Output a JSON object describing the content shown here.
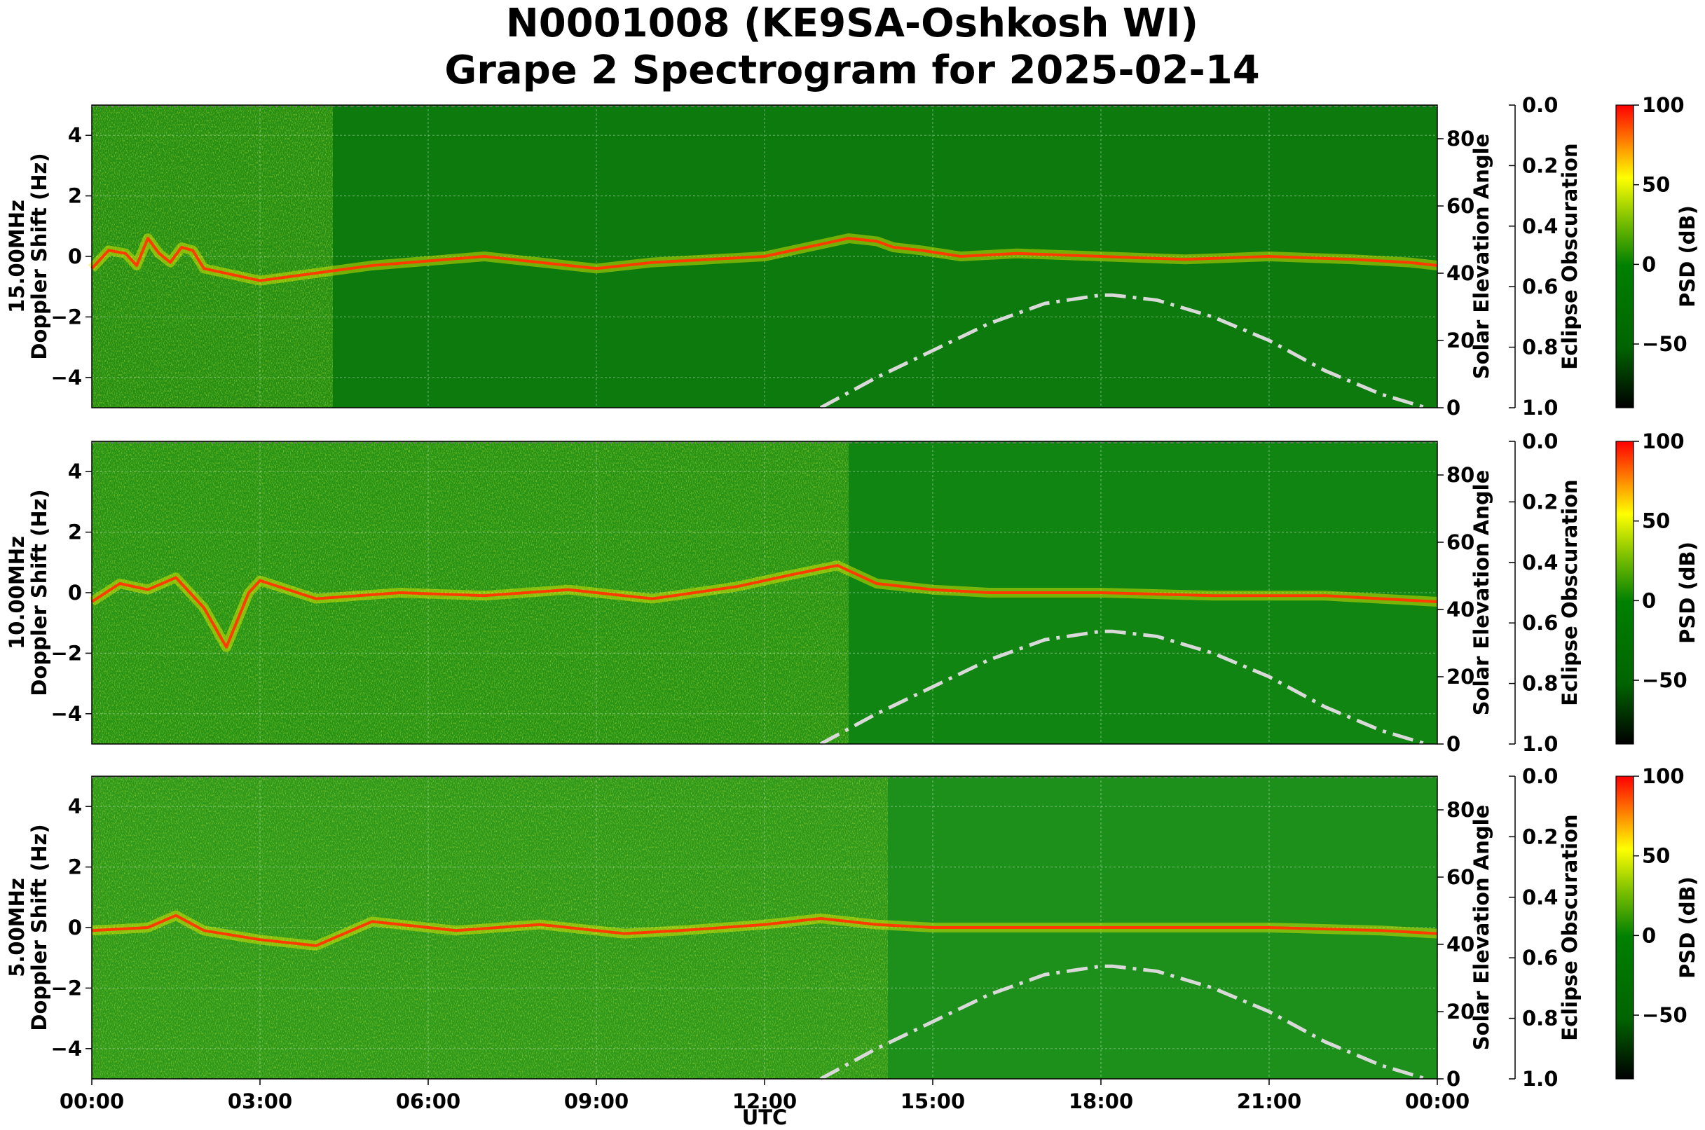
{
  "title_line1": "N0001008 (KE9SA-Oshkosh WI)",
  "title_line2": "Grape 2 Spectrogram for 2025-02-14",
  "chart_data": {
    "type": "heatmap",
    "title": "N0001008 (KE9SA-Oshkosh WI) Grape 2 Spectrogram for 2025-02-14",
    "xlabel": "UTC",
    "x_tick_labels": [
      "00:00",
      "03:00",
      "06:00",
      "09:00",
      "12:00",
      "15:00",
      "18:00",
      "21:00",
      "00:00"
    ],
    "xlim_hours": [
      0,
      24
    ],
    "ylim": [
      -5,
      5
    ],
    "y_ticks": [
      -4,
      -2,
      0,
      2,
      4
    ],
    "y_tick_labels": [
      "−4",
      "−2",
      "0",
      "2",
      "4"
    ],
    "y2_label": "Solar Elevation Angle",
    "y2lim": [
      0,
      90
    ],
    "y2_ticks": [
      0,
      20,
      40,
      60,
      80
    ],
    "y3_label": "Eclipse Obscuration",
    "y3lim": [
      1.0,
      0.0
    ],
    "y3_tick_labels": [
      "0.0",
      "0.2",
      "0.4",
      "0.6",
      "0.8",
      "1.0"
    ],
    "colorbar_label": "PSD (dB)",
    "colorbar_range": [
      -90,
      100
    ],
    "colorbar_ticks": [
      100,
      50,
      0,
      -50
    ],
    "colorbar_tick_labels": [
      "100",
      "50",
      "0",
      "−50"
    ],
    "colormap": [
      "#000000",
      "#006400",
      "#008000",
      "#7cc000",
      "#ffff00",
      "#ff0000"
    ],
    "grid": true,
    "solar_elevation_style": {
      "color": "#d9d9d9",
      "dash": "dash-dot"
    },
    "solar_elevation": {
      "hours": [
        13.0,
        14.0,
        15.0,
        16.0,
        17.0,
        18.0,
        18.2,
        19.0,
        20.0,
        21.0,
        22.0,
        23.0,
        23.8
      ],
      "degrees": [
        0,
        9,
        17,
        25,
        31,
        33.5,
        33.5,
        32,
        27,
        20,
        11,
        4,
        0
      ]
    },
    "panels": [
      {
        "name": "15.00MHz",
        "ylabel_line1": "15.00MHz",
        "ylabel_line2": "Doppler Shift (Hz)",
        "bg": "#0c7a0c",
        "high_noise_hours": [
          0,
          4.3
        ]
      },
      {
        "name": "10.00MHz",
        "ylabel_line1": "10.00MHz",
        "ylabel_line2": "Doppler Shift (Hz)",
        "bg": "#118511",
        "high_noise_hours": [
          0,
          13.5
        ]
      },
      {
        "name": "5.00MHz",
        "ylabel_line1": "5.00MHz",
        "ylabel_line2": "Doppler Shift (Hz)",
        "bg": "#1d901b",
        "high_noise_hours": [
          0,
          14.2
        ]
      }
    ],
    "doppler_trace": [
      {
        "name": "15.00MHz",
        "hours": [
          0,
          0.3,
          0.6,
          0.8,
          1.0,
          1.2,
          1.4,
          1.6,
          1.8,
          2.0,
          3.0,
          5.0,
          7.0,
          8.0,
          9.0,
          10.0,
          12.0,
          13.5,
          14.0,
          14.3,
          14.8,
          15.5,
          16.5,
          18.0,
          19.5,
          21.0,
          22.5,
          23.5,
          24.0
        ],
        "doppler_hz": [
          -0.4,
          0.2,
          0.1,
          -0.3,
          0.6,
          0.1,
          -0.2,
          0.3,
          0.2,
          -0.4,
          -0.8,
          -0.3,
          0.0,
          -0.2,
          -0.4,
          -0.2,
          0.0,
          0.6,
          0.5,
          0.3,
          0.2,
          0.0,
          0.1,
          0.0,
          -0.1,
          0.0,
          -0.1,
          -0.2,
          -0.3
        ]
      },
      {
        "name": "10.00MHz",
        "hours": [
          0,
          0.5,
          1.0,
          1.5,
          2.0,
          2.4,
          2.8,
          3.0,
          4.0,
          5.5,
          7.0,
          8.5,
          10.0,
          11.5,
          12.5,
          13.3,
          14.0,
          15.0,
          16.0,
          18.0,
          20.0,
          22.0,
          24.0
        ],
        "doppler_hz": [
          -0.3,
          0.3,
          0.1,
          0.5,
          -0.5,
          -1.8,
          0.0,
          0.4,
          -0.2,
          0.0,
          -0.1,
          0.1,
          -0.2,
          0.2,
          0.6,
          0.9,
          0.3,
          0.1,
          0.0,
          0.0,
          -0.1,
          -0.1,
          -0.3
        ]
      },
      {
        "name": "5.00MHz",
        "hours": [
          0,
          1.0,
          1.5,
          2.0,
          3.0,
          4.0,
          5.0,
          6.5,
          8.0,
          9.5,
          10.5,
          12.0,
          13.0,
          14.0,
          15.0,
          18.0,
          21.0,
          23.0,
          24.0
        ],
        "doppler_hz": [
          -0.1,
          0.0,
          0.4,
          -0.1,
          -0.4,
          -0.6,
          0.2,
          -0.1,
          0.1,
          -0.2,
          -0.1,
          0.1,
          0.3,
          0.1,
          0.0,
          0.0,
          0.0,
          -0.1,
          -0.2
        ]
      }
    ]
  }
}
